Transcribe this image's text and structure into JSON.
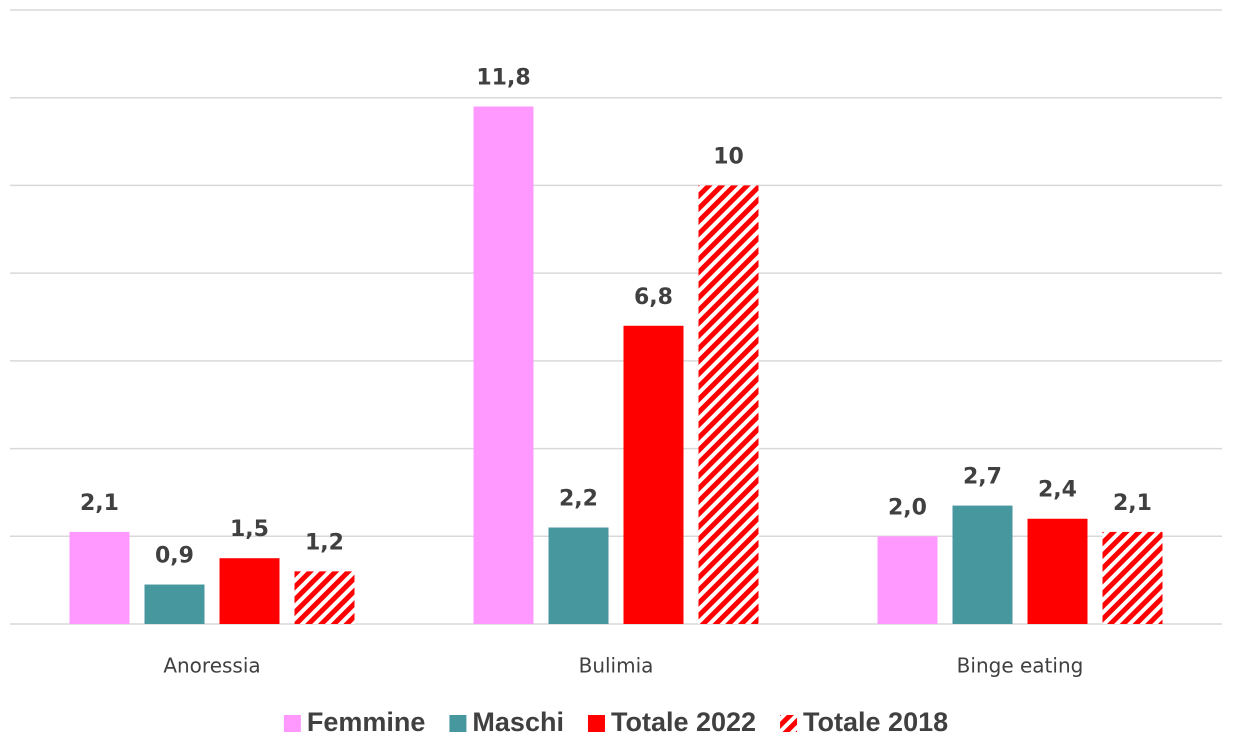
{
  "chart_data": {
    "type": "bar",
    "categories": [
      "Anoressia",
      "Bulimia",
      "Binge eating"
    ],
    "series": [
      {
        "name": "Femmine",
        "color": "#ff99ff",
        "values": [
          2.1,
          11.8,
          2.0
        ],
        "value_labels": [
          "2,1",
          "11,8",
          "2,0"
        ]
      },
      {
        "name": "Maschi",
        "color": "#47979f",
        "values": [
          0.9,
          2.2,
          2.7
        ],
        "value_labels": [
          "0,9",
          "2,2",
          "2,7"
        ]
      },
      {
        "name": "Totale 2022",
        "color": "#ff0000",
        "values": [
          1.5,
          6.8,
          2.4
        ],
        "value_labels": [
          "1,5",
          "6,8",
          "2,4"
        ]
      },
      {
        "name": "Totale 2018",
        "color": "#ff0000",
        "hatch": true,
        "values": [
          1.2,
          10,
          2.1
        ],
        "value_labels": [
          "1,2",
          "10",
          "2,1"
        ]
      }
    ],
    "ylim": [
      0,
      14
    ],
    "yticks": [
      0,
      2,
      4,
      6,
      8,
      10,
      12,
      14
    ],
    "grid": true,
    "legend": "bottom"
  }
}
